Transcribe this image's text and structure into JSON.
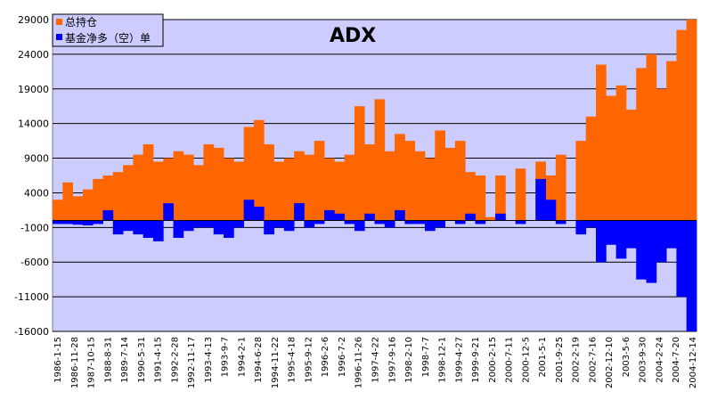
{
  "chart_data": {
    "type": "area",
    "title": "ADX",
    "xlabel": "",
    "ylabel": "",
    "ylim": [
      -16000,
      29000
    ],
    "yticks": [
      29000,
      24000,
      19000,
      14000,
      9000,
      4000,
      -1000,
      -6000,
      -11000,
      -16000
    ],
    "ytick_labels": [
      "29000",
      "24000",
      "19000",
      "14000",
      "9000",
      "4000",
      "-1000",
      "-6000",
      "-11000",
      "-16000"
    ],
    "xtick_labels": [
      "1986-1-15",
      "1986-11-28",
      "1987-10-15",
      "1988-8-31",
      "1989-7-14",
      "1990-5-31",
      "1991-4-15",
      "1992-2-28",
      "1992-11-17",
      "1993-4-13",
      "1993-9-7",
      "1994-2-1",
      "1994-6-28",
      "1994-11-22",
      "1995-4-18",
      "1995-9-12",
      "1996-2-6",
      "1996-7-2",
      "1996-11-26",
      "1997-4-22",
      "1997-9-16",
      "1998-2-10",
      "1998-7-7",
      "1998-12-1",
      "1999-4-27",
      "1999-9-21",
      "2000-2-15",
      "2000-7-11",
      "2000-12-5",
      "2001-5-1",
      "2001-9-25",
      "2002-2-19",
      "2002-7-16",
      "2002-12-10",
      "2003-5-6",
      "2003-9-30",
      "2004-2-24",
      "2004-7-20",
      "2004-12-14"
    ],
    "grid": true,
    "legend_position": "top-left",
    "background": "#ccccff",
    "series": [
      {
        "name": "总持仓",
        "color": "#ff6600",
        "values": [
          3000,
          5500,
          3500,
          4500,
          6000,
          6500,
          7000,
          8000,
          9500,
          11000,
          8500,
          9000,
          10000,
          9500,
          8000,
          11000,
          10500,
          9000,
          8500,
          13500,
          14500,
          11000,
          8500,
          9000,
          10000,
          9500,
          11500,
          9000,
          8500,
          9500,
          16500,
          11000,
          17500,
          10000,
          12500,
          11500,
          10000,
          9000,
          13000,
          10500,
          11500,
          7000,
          6500,
          500,
          6500,
          0,
          7500,
          0,
          8500,
          6500,
          9500,
          0,
          11500,
          15000,
          22500,
          18000,
          19500,
          16000,
          22000,
          24000,
          19000,
          23000,
          27500,
          29000
        ]
      },
      {
        "name": "基金净多（空）单",
        "color": "#0000ff",
        "values": [
          -500,
          -500,
          -600,
          -700,
          -500,
          1500,
          -2000,
          -1500,
          -2000,
          -2500,
          -3000,
          2500,
          -2500,
          -1500,
          -1000,
          -1000,
          -2000,
          -2500,
          -1000,
          3000,
          2000,
          -2000,
          -1000,
          -1500,
          2500,
          -1000,
          -500,
          1500,
          1000,
          -500,
          -1500,
          1000,
          -500,
          -1000,
          1500,
          -500,
          -500,
          -1500,
          -1000,
          0,
          -500,
          1000,
          -500,
          0,
          1000,
          0,
          -500,
          0,
          6000,
          3000,
          -500,
          0,
          -2000,
          -1000,
          -6000,
          -3500,
          -5500,
          -4000,
          -8500,
          -9000,
          -6000,
          -4000,
          -11000,
          -16000
        ]
      }
    ]
  }
}
